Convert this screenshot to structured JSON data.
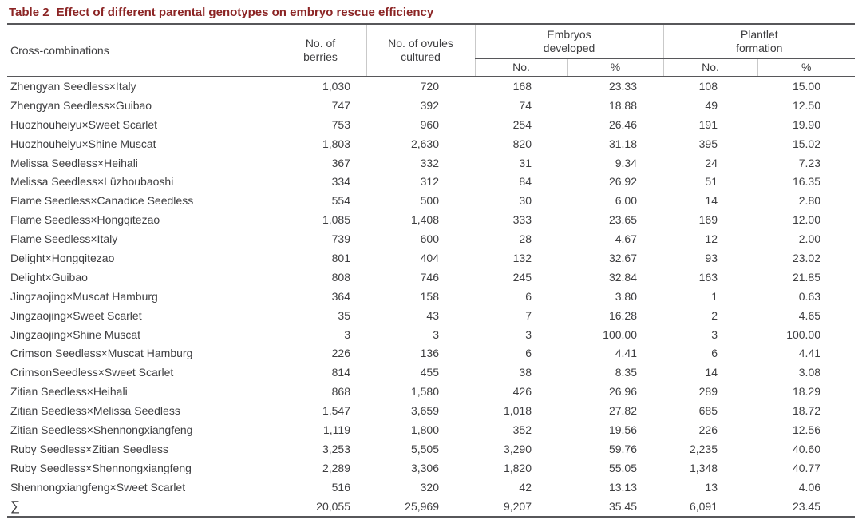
{
  "colors": {
    "title": "#8b2424",
    "rule": "#57575a",
    "text": "#3e3e40",
    "header_grid": "#c9c9c9"
  },
  "table": {
    "title_label": "Table 2",
    "title_text": "Effect of different parental genotypes on embryo rescue efficiency",
    "header": {
      "cross": "Cross-combinations",
      "berries": "No. of\nberries",
      "ovules": "No. of ovules\ncultured",
      "embryos_group": "Embryos\ndeveloped",
      "plantlet_group": "Plantlet\nformation",
      "count_label": "No.",
      "percent_label": "%"
    },
    "rows": [
      [
        "Zhengyan Seedless×Italy",
        "1,030",
        "720",
        "168",
        "23.33",
        "108",
        "15.00"
      ],
      [
        "Zhengyan Seedless×Guibao",
        "747",
        "392",
        "74",
        "18.88",
        "49",
        "12.50"
      ],
      [
        "Huozhouheiyu×Sweet Scarlet",
        "753",
        "960",
        "254",
        "26.46",
        "191",
        "19.90"
      ],
      [
        "Huozhouheiyu×Shine Muscat",
        "1,803",
        "2,630",
        "820",
        "31.18",
        "395",
        "15.02"
      ],
      [
        "Melissa Seedless×Heihali",
        "367",
        "332",
        "31",
        "9.34",
        "24",
        "7.23"
      ],
      [
        "Melissa Seedless×Lüzhoubaoshi",
        "334",
        "312",
        "84",
        "26.92",
        "51",
        "16.35"
      ],
      [
        "Flame Seedless×Canadice Seedless",
        "554",
        "500",
        "30",
        "6.00",
        "14",
        "2.80"
      ],
      [
        "Flame Seedless×Hongqitezao",
        "1,085",
        "1,408",
        "333",
        "23.65",
        "169",
        "12.00"
      ],
      [
        "Flame Seedless×Italy",
        "739",
        "600",
        "28",
        "4.67",
        "12",
        "2.00"
      ],
      [
        "Delight×Hongqitezao",
        "801",
        "404",
        "132",
        "32.67",
        "93",
        "23.02"
      ],
      [
        "Delight×Guibao",
        "808",
        "746",
        "245",
        "32.84",
        "163",
        "21.85"
      ],
      [
        "Jingzaojing×Muscat Hamburg",
        "364",
        "158",
        "6",
        "3.80",
        "1",
        "0.63"
      ],
      [
        "Jingzaojing×Sweet Scarlet",
        "35",
        "43",
        "7",
        "16.28",
        "2",
        "4.65"
      ],
      [
        "Jingzaojing×Shine Muscat",
        "3",
        "3",
        "3",
        "100.00",
        "3",
        "100.00"
      ],
      [
        "Crimson Seedless×Muscat Hamburg",
        "226",
        "136",
        "6",
        "4.41",
        "6",
        "4.41"
      ],
      [
        "CrimsonSeedless×Sweet Scarlet",
        "814",
        "455",
        "38",
        "8.35",
        "14",
        "3.08"
      ],
      [
        "Zitian Seedless×Heihali",
        "868",
        "1,580",
        "426",
        "26.96",
        "289",
        "18.29"
      ],
      [
        "Zitian Seedless×Melissa Seedless",
        "1,547",
        "3,659",
        "1,018",
        "27.82",
        "685",
        "18.72"
      ],
      [
        "Zitian Seedless×Shennongxiangfeng",
        "1,119",
        "1,800",
        "352",
        "19.56",
        "226",
        "12.56"
      ],
      [
        "Ruby Seedless×Zitian Seedless",
        "3,253",
        "5,505",
        "3,290",
        "59.76",
        "2,235",
        "40.60"
      ],
      [
        "Ruby Seedless×Shennongxiangfeng",
        "2,289",
        "3,306",
        "1,820",
        "55.05",
        "1,348",
        "40.77"
      ],
      [
        "Shennongxiangfeng×Sweet Scarlet",
        "516",
        "320",
        "42",
        "13.13",
        "13",
        "4.06"
      ]
    ],
    "total_row": [
      "∑",
      "20,055",
      "25,969",
      "9,207",
      "35.45",
      "6,091",
      "23.45"
    ]
  }
}
